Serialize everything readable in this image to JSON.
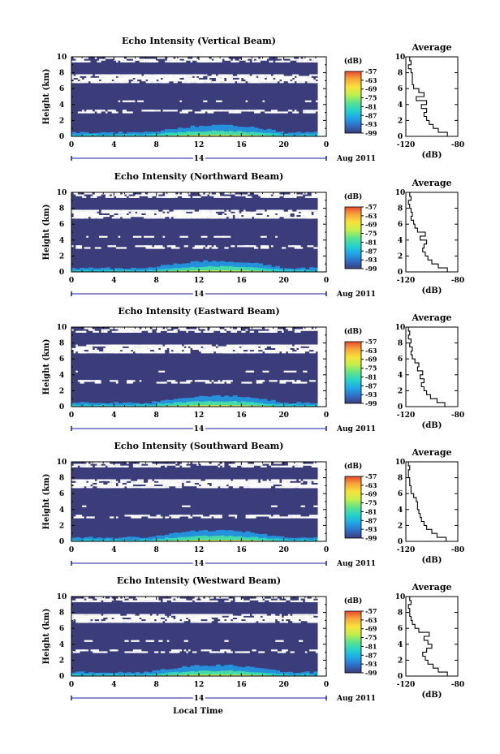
{
  "figure": {
    "xlabel": "Local Time",
    "date_label": "Aug 2011",
    "day_label": "14",
    "avg_title": "Average",
    "avg_xlabel": "(dB)",
    "cb_unit": "(dB)",
    "colors": {
      "background_clear": "#ffffff",
      "noise_floor": "#3b3d7a",
      "line": "#000000",
      "colormap": [
        "#3b3d7a",
        "#2f6fc8",
        "#1fa8e8",
        "#27d3c9",
        "#5fe38a",
        "#c2ef4a",
        "#f7e23a",
        "#f8a83a",
        "#e84a2f"
      ]
    }
  },
  "chart_data": [
    {
      "type": "heatmap",
      "title": "Echo Intensity (Vertical Beam)",
      "ylabel": "Height (km)",
      "xlabel": "Local Time",
      "xlim": [
        0,
        24
      ],
      "ylim": [
        0,
        10
      ],
      "x_ticks": [
        "0",
        "4",
        "8",
        "12",
        "16",
        "20",
        "0"
      ],
      "y_ticks": [
        "0",
        "2",
        "4",
        "6",
        "8",
        "10"
      ],
      "colorbar_ticks": [
        "-57",
        "-63",
        "-69",
        "-75",
        "-81",
        "-87",
        "-93",
        "-99"
      ],
      "colorbar_range": [
        -99,
        -57
      ],
      "average_profile": {
        "title": "Average",
        "xlabel": "(dB)",
        "x_ticks": [
          "-120",
          "-80"
        ],
        "xlim": [
          -120,
          -80
        ],
        "ylim": [
          0,
          10
        ],
        "height_km": [
          0,
          0.5,
          1,
          1.5,
          2,
          2.5,
          3,
          3.5,
          4,
          4.5,
          5,
          5.5,
          6,
          6.5,
          7,
          7.5,
          8,
          8.5,
          9,
          9.5,
          10
        ],
        "db": [
          -82,
          -88,
          -95,
          -99,
          -102,
          -104,
          -106,
          -104,
          -108,
          -104,
          -112,
          -106,
          -110,
          -114,
          -115,
          -115,
          -115,
          -116,
          -118,
          -116,
          -117
        ]
      }
    },
    {
      "type": "heatmap",
      "title": "Echo Intensity (Northward Beam)",
      "ylabel": "Height (km)",
      "xlabel": "Local Time",
      "xlim": [
        0,
        24
      ],
      "ylim": [
        0,
        10
      ],
      "x_ticks": [
        "0",
        "4",
        "8",
        "12",
        "16",
        "20",
        "0"
      ],
      "y_ticks": [
        "0",
        "2",
        "4",
        "6",
        "8",
        "10"
      ],
      "colorbar_ticks": [
        "-57",
        "-63",
        "-69",
        "-75",
        "-81",
        "-87",
        "-93",
        "-99"
      ],
      "colorbar_range": [
        -99,
        -57
      ],
      "average_profile": {
        "title": "Average",
        "xlabel": "(dB)",
        "x_ticks": [
          "-120",
          "-80"
        ],
        "xlim": [
          -120,
          -80
        ],
        "ylim": [
          0,
          10
        ],
        "height_km": [
          0,
          0.5,
          1,
          1.5,
          2,
          2.5,
          3,
          3.5,
          4,
          4.5,
          5,
          5.5,
          6,
          6.5,
          7,
          7.5,
          8,
          8.5,
          9,
          9.5,
          10
        ],
        "db": [
          -82,
          -88,
          -95,
          -100,
          -103,
          -105,
          -107,
          -106,
          -104,
          -109,
          -105,
          -111,
          -113,
          -114,
          -116,
          -115,
          -116,
          -117,
          -118,
          -116,
          -117
        ]
      }
    },
    {
      "type": "heatmap",
      "title": "Echo Intensity (Eastward Beam)",
      "ylabel": "Height (km)",
      "xlabel": "Local Time",
      "xlim": [
        0,
        24
      ],
      "ylim": [
        0,
        10
      ],
      "x_ticks": [
        "0",
        "4",
        "8",
        "12",
        "16",
        "20",
        "0"
      ],
      "y_ticks": [
        "0",
        "2",
        "4",
        "6",
        "8",
        "10"
      ],
      "colorbar_ticks": [
        "-57",
        "-63",
        "-69",
        "-75",
        "-81",
        "-87",
        "-93",
        "-99"
      ],
      "colorbar_range": [
        -99,
        -57
      ],
      "average_profile": {
        "title": "Average",
        "xlabel": "(dB)",
        "x_ticks": [
          "-120",
          "-80"
        ],
        "xlim": [
          -120,
          -80
        ],
        "ylim": [
          0,
          10
        ],
        "height_km": [
          0,
          0.5,
          1,
          1.5,
          2,
          2.5,
          3,
          3.5,
          4,
          4.5,
          5,
          5.5,
          6,
          6.5,
          7,
          7.5,
          8,
          8.5,
          9,
          9.5,
          10
        ],
        "db": [
          -84,
          -90,
          -96,
          -101,
          -104,
          -106,
          -108,
          -106,
          -109,
          -107,
          -111,
          -110,
          -113,
          -115,
          -116,
          -115,
          -117,
          -116,
          -118,
          -117,
          -118
        ]
      }
    },
    {
      "type": "heatmap",
      "title": "Echo Intensity (Southward Beam)",
      "ylabel": "Height (km)",
      "xlabel": "Local Time",
      "xlim": [
        0,
        24
      ],
      "ylim": [
        0,
        10
      ],
      "x_ticks": [
        "0",
        "4",
        "8",
        "12",
        "16",
        "20",
        "0"
      ],
      "y_ticks": [
        "0",
        "2",
        "4",
        "6",
        "8",
        "10"
      ],
      "colorbar_ticks": [
        "-57",
        "-63",
        "-69",
        "-75",
        "-81",
        "-87",
        "-93",
        "-99"
      ],
      "colorbar_range": [
        -99,
        -57
      ],
      "average_profile": {
        "title": "Average",
        "xlabel": "(dB)",
        "x_ticks": [
          "-120",
          "-80"
        ],
        "xlim": [
          -120,
          -80
        ],
        "ylim": [
          0,
          10
        ],
        "height_km": [
          0,
          0.5,
          1,
          1.5,
          2,
          2.5,
          3,
          3.5,
          4,
          4.5,
          5,
          5.5,
          6,
          6.5,
          7,
          7.5,
          8,
          8.5,
          9,
          9.5,
          10
        ],
        "db": [
          -82,
          -89,
          -96,
          -100,
          -104,
          -106,
          -108,
          -109,
          -110,
          -111,
          -111,
          -112,
          -114,
          -116,
          -116,
          -117,
          -117,
          -118,
          -118,
          -117,
          -118
        ]
      }
    },
    {
      "type": "heatmap",
      "title": "Echo Intensity (Westward Beam)",
      "ylabel": "Height (km)",
      "xlabel": "Local Time",
      "xlim": [
        0,
        24
      ],
      "ylim": [
        0,
        10
      ],
      "x_ticks": [
        "0",
        "4",
        "8",
        "12",
        "16",
        "20",
        "0"
      ],
      "y_ticks": [
        "0",
        "2",
        "4",
        "6",
        "8",
        "10"
      ],
      "colorbar_ticks": [
        "-57",
        "-63",
        "-69",
        "-75",
        "-81",
        "-87",
        "-93",
        "-99"
      ],
      "colorbar_range": [
        -99,
        -57
      ],
      "average_profile": {
        "title": "Average",
        "xlabel": "(dB)",
        "x_ticks": [
          "-120",
          "-80"
        ],
        "xlim": [
          -120,
          -80
        ],
        "ylim": [
          0,
          10
        ],
        "height_km": [
          0,
          0.5,
          1,
          1.5,
          2,
          2.5,
          3,
          3.5,
          4,
          4.5,
          5,
          5.5,
          6,
          6.5,
          7,
          7.5,
          8,
          8.5,
          9,
          9.5,
          10
        ],
        "db": [
          -82,
          -88,
          -95,
          -99,
          -103,
          -105,
          -107,
          -104,
          -100,
          -103,
          -106,
          -102,
          -110,
          -113,
          -115,
          -116,
          -117,
          -117,
          -118,
          -116,
          -117
        ]
      }
    }
  ]
}
